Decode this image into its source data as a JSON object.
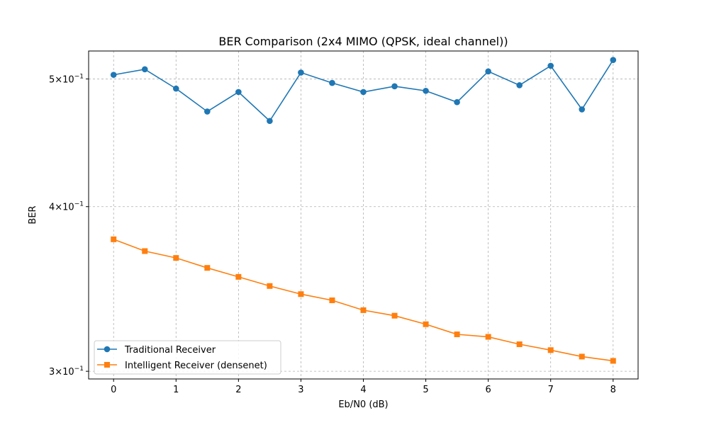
{
  "chart_data": {
    "type": "line",
    "title": "BER Comparison (2x4 MIMO (QPSK, ideal channel))",
    "xlabel": "Eb/N0 (dB)",
    "ylabel": "BER",
    "yscale": "log",
    "xlim": [
      -0.4,
      8.4
    ],
    "ylim": [
      0.296,
      0.525
    ],
    "grid": true,
    "legend_position": "lower-left",
    "x": [
      0,
      0.5,
      1,
      1.5,
      2,
      2.5,
      3,
      3.5,
      4,
      4.5,
      5,
      5.5,
      6,
      6.5,
      7,
      7.5,
      8
    ],
    "x_ticks": [
      0,
      1,
      2,
      3,
      4,
      5,
      6,
      7,
      8
    ],
    "x_tick_labels": [
      "0",
      "1",
      "2",
      "3",
      "4",
      "5",
      "6",
      "7",
      "8"
    ],
    "y_ticks": [
      {
        "value": 0.5,
        "mantissa": "5",
        "exponent": "−1"
      },
      {
        "value": 0.4,
        "mantissa": "4",
        "exponent": "−1"
      },
      {
        "value": 0.3,
        "mantissa": "3",
        "exponent": "−1"
      }
    ],
    "series": [
      {
        "name": "Traditional Receiver",
        "color": "#1f77b4",
        "marker": "circle",
        "values": [
          0.5036,
          0.5085,
          0.4916,
          0.4723,
          0.4887,
          0.4646,
          0.5056,
          0.4965,
          0.4887,
          0.4936,
          0.4897,
          0.4801,
          0.5066,
          0.4945,
          0.5116,
          0.4741,
          0.5168
        ]
      },
      {
        "name": "Intelligent Receiver (densenet)",
        "color": "#ff7f0e",
        "marker": "square",
        "values": [
          0.3778,
          0.3701,
          0.3657,
          0.3594,
          0.3538,
          0.3482,
          0.3433,
          0.3396,
          0.3338,
          0.3306,
          0.3257,
          0.32,
          0.3186,
          0.3145,
          0.3113,
          0.3078,
          0.3055
        ]
      }
    ]
  }
}
